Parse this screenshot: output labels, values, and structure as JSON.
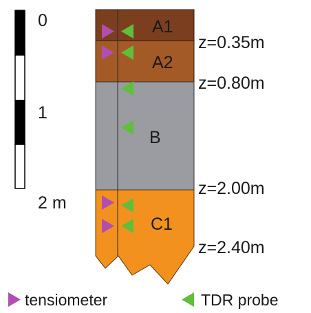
{
  "scale_bar": {
    "labels": [
      "0",
      "1",
      "2 m"
    ]
  },
  "horizons": [
    {
      "id": "A1",
      "label": "A1",
      "color": "#7b3f1f"
    },
    {
      "id": "A2",
      "label": "A2",
      "color": "#a35a26"
    },
    {
      "id": "B",
      "label": "B",
      "color": "#9a9ca1"
    },
    {
      "id": "C1",
      "label": "C1",
      "color": "#f2911e"
    }
  ],
  "depth_labels": [
    "z=0.35m",
    "z=0.80m",
    "z=2.00m",
    "z=2.40m"
  ],
  "legend": {
    "tensiometer": {
      "label": "tensiometer",
      "color": "#b04fb0"
    },
    "tdr": {
      "label": "TDR probe",
      "color": "#5fbf3a"
    }
  }
}
